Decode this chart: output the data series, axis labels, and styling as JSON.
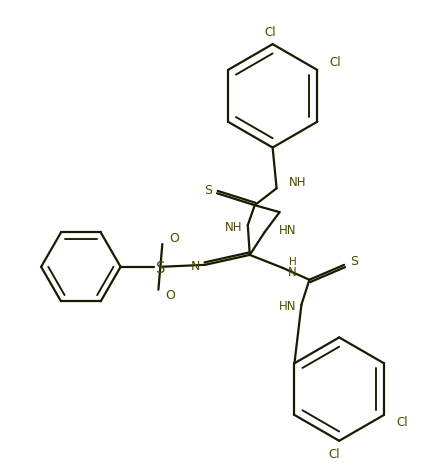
{
  "figsize": [
    4.3,
    4.76
  ],
  "dpi": 100,
  "bg_color": "#ffffff",
  "line_color": "#1a1a00",
  "text_color": "#4a4a00",
  "bond_lw": 1.6,
  "font_size": 8.5,
  "xlim": [
    0,
    430
  ],
  "ylim": [
    0,
    476
  ]
}
